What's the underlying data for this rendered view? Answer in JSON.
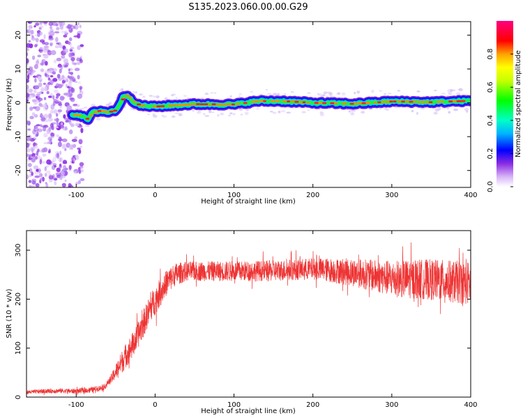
{
  "title": "S135.2023.060.00.00.G29",
  "chart_data": [
    {
      "type": "heatmap",
      "xlabel": "Height of straight line (km)",
      "ylabel": "Frequency (Hz)",
      "xlim": [
        -163,
        400
      ],
      "ylim": [
        -25,
        24
      ],
      "x_ticks": [
        -100,
        0,
        100,
        200,
        300,
        400
      ],
      "y_ticks": [
        -20,
        -10,
        0,
        10,
        20
      ],
      "colorbar": {
        "label": "Normalized spectral amplitude",
        "range": [
          0,
          1
        ],
        "ticks": [
          "0.0",
          "0.2",
          "0.4",
          "0.6",
          "0.8"
        ]
      },
      "ridge_frequency_hz": [
        {
          "x": -105,
          "y": -3.5
        },
        {
          "x": -95,
          "y": -3.6
        },
        {
          "x": -85,
          "y": -5
        },
        {
          "x": -80,
          "y": -3
        },
        {
          "x": -70,
          "y": -2.3
        },
        {
          "x": -60,
          "y": -2.8
        },
        {
          "x": -50,
          "y": -2.2
        },
        {
          "x": -45,
          "y": -0.5
        },
        {
          "x": -40,
          "y": 2
        },
        {
          "x": -35,
          "y": 2.2
        },
        {
          "x": -28,
          "y": 0.5
        },
        {
          "x": -20,
          "y": -0.8
        },
        {
          "x": 0,
          "y": -1.1
        },
        {
          "x": 50,
          "y": -0.4
        },
        {
          "x": 100,
          "y": -0.5
        },
        {
          "x": 130,
          "y": 0.5
        },
        {
          "x": 160,
          "y": 0.5
        },
        {
          "x": 200,
          "y": 0
        },
        {
          "x": 250,
          "y": -0.3
        },
        {
          "x": 300,
          "y": 0.4
        },
        {
          "x": 350,
          "y": 0.2
        },
        {
          "x": 400,
          "y": 0.6
        }
      ],
      "noise_region_x": [
        -163,
        -100
      ]
    },
    {
      "type": "line",
      "xlabel": "Height of straight line (km)",
      "ylabel": "SNR (10 * v/v)",
      "xlim": [
        -163,
        400
      ],
      "ylim": [
        0,
        340
      ],
      "x_ticks": [
        -100,
        0,
        100,
        200,
        300,
        400
      ],
      "y_ticks": [
        0,
        100,
        200,
        300
      ],
      "color": "#ee3333",
      "series": [
        {
          "trend": [
            {
              "x": -163,
              "y": 10
            },
            {
              "x": -140,
              "y": 12
            },
            {
              "x": -120,
              "y": 13
            },
            {
              "x": -100,
              "y": 12
            },
            {
              "x": -80,
              "y": 15
            },
            {
              "x": -65,
              "y": 20
            },
            {
              "x": -55,
              "y": 38
            },
            {
              "x": -45,
              "y": 65
            },
            {
              "x": -35,
              "y": 90
            },
            {
              "x": -25,
              "y": 115
            },
            {
              "x": -15,
              "y": 150
            },
            {
              "x": -5,
              "y": 185
            },
            {
              "x": 5,
              "y": 210
            },
            {
              "x": 15,
              "y": 235
            },
            {
              "x": 25,
              "y": 250
            },
            {
              "x": 40,
              "y": 257
            },
            {
              "x": 100,
              "y": 257
            },
            {
              "x": 150,
              "y": 258
            },
            {
              "x": 200,
              "y": 262
            },
            {
              "x": 250,
              "y": 255
            },
            {
              "x": 300,
              "y": 242
            },
            {
              "x": 350,
              "y": 240
            },
            {
              "x": 400,
              "y": 232
            }
          ],
          "noise_amplitude": [
            {
              "x": -163,
              "y": 4
            },
            {
              "x": -60,
              "y": 6
            },
            {
              "x": -40,
              "y": 25
            },
            {
              "x": 0,
              "y": 30
            },
            {
              "x": 40,
              "y": 20
            },
            {
              "x": 200,
              "y": 22
            },
            {
              "x": 260,
              "y": 30
            },
            {
              "x": 320,
              "y": 40
            },
            {
              "x": 400,
              "y": 45
            }
          ]
        }
      ]
    }
  ]
}
